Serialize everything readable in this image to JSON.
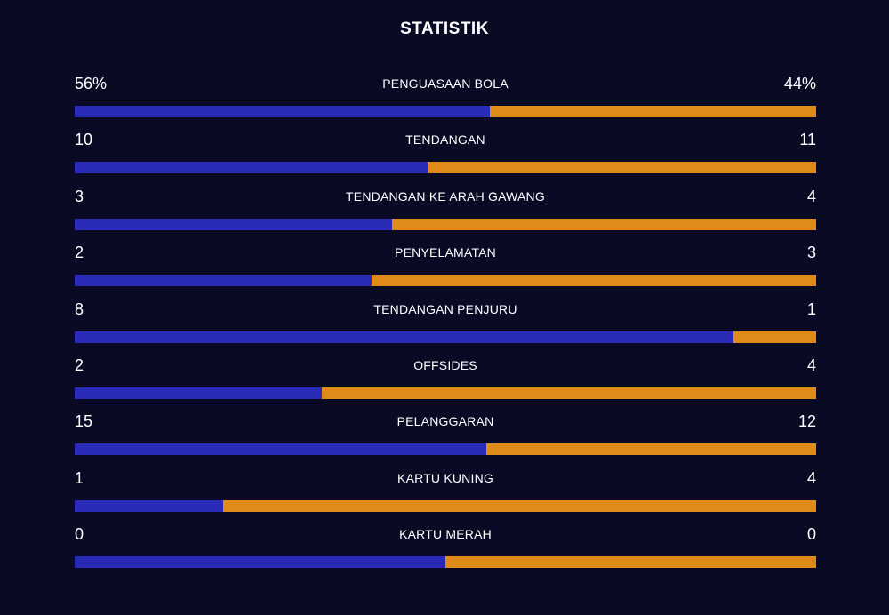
{
  "title": "STATISTIK",
  "colors": {
    "background": "#0a0a24",
    "home": "#2a2ab8",
    "away": "#e08a1a"
  },
  "stats": [
    {
      "label": "PENGUASAAN BOLA",
      "home": "56%",
      "away": "44%",
      "home_value": 56,
      "away_value": 44
    },
    {
      "label": "TENDANGAN",
      "home": "10",
      "away": "11",
      "home_value": 10,
      "away_value": 11
    },
    {
      "label": "TENDANGAN KE ARAH GAWANG",
      "home": "3",
      "away": "4",
      "home_value": 3,
      "away_value": 4
    },
    {
      "label": "PENYELAMATAN",
      "home": "2",
      "away": "3",
      "home_value": 2,
      "away_value": 3
    },
    {
      "label": "TENDANGAN PENJURU",
      "home": "8",
      "away": "1",
      "home_value": 8,
      "away_value": 1
    },
    {
      "label": "OFFSIDES",
      "home": "2",
      "away": "4",
      "home_value": 2,
      "away_value": 4
    },
    {
      "label": "PELANGGARAN",
      "home": "15",
      "away": "12",
      "home_value": 15,
      "away_value": 12
    },
    {
      "label": "KARTU KUNING",
      "home": "1",
      "away": "4",
      "home_value": 1,
      "away_value": 4
    },
    {
      "label": "KARTU MERAH",
      "home": "0",
      "away": "0",
      "home_value": 0,
      "away_value": 0
    }
  ]
}
